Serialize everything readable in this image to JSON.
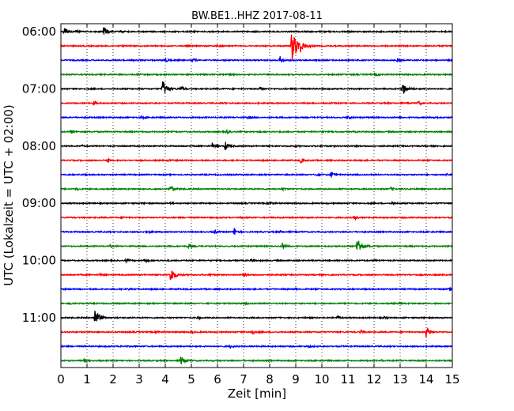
{
  "chart_data": {
    "type": "line",
    "title": "BW.BE1..HHZ 2017-08-11",
    "xlabel": "Zeit  [min]",
    "ylabel": "UTC (Lokalzeit = UTC + 02:00)",
    "xlim": [
      0,
      15
    ],
    "x_ticks": [
      0,
      1,
      2,
      3,
      4,
      5,
      6,
      7,
      8,
      9,
      10,
      11,
      12,
      13,
      14,
      15
    ],
    "y_tick_labels": [
      "06:00",
      "07:00",
      "08:00",
      "09:00",
      "10:00",
      "11:00"
    ],
    "row_minutes": 15,
    "grid": true,
    "colors": [
      "#000000",
      "#ff0000",
      "#0000ff",
      "#008000"
    ],
    "series": [
      {
        "start": "06:00",
        "events": [
          [
            0.15,
            0.5
          ],
          [
            1.65,
            0.7
          ],
          [
            0.6,
            0.15
          ],
          [
            2.3,
            0.1
          ]
        ]
      },
      {
        "start": "06:15",
        "events": [
          [
            8.85,
            2.2
          ],
          [
            9.2,
            0.4
          ],
          [
            6.0,
            0.1
          ]
        ]
      },
      {
        "start": "06:30",
        "events": [
          [
            4.0,
            0.3
          ],
          [
            5.05,
            0.25
          ],
          [
            8.4,
            0.5
          ],
          [
            12.9,
            0.25
          ]
        ]
      },
      {
        "start": "06:45",
        "events": [
          [
            12.05,
            0.25
          ],
          [
            3.0,
            0.1
          ],
          [
            6.5,
            0.1
          ]
        ]
      },
      {
        "start": "07:00",
        "events": [
          [
            3.9,
            1.2
          ],
          [
            13.1,
            0.9
          ],
          [
            7.65,
            0.3
          ],
          [
            4.6,
            0.3
          ]
        ]
      },
      {
        "start": "07:15",
        "events": [
          [
            1.25,
            0.25
          ],
          [
            13.7,
            0.25
          ],
          [
            6.2,
            0.1
          ]
        ]
      },
      {
        "start": "07:30",
        "events": [
          [
            3.1,
            0.2
          ],
          [
            7.2,
            0.2
          ],
          [
            11.0,
            0.25
          ],
          [
            14.3,
            0.15
          ]
        ]
      },
      {
        "start": "07:45",
        "events": [
          [
            0.4,
            0.25
          ],
          [
            6.35,
            0.25
          ],
          [
            10.0,
            0.1
          ]
        ]
      },
      {
        "start": "08:00",
        "events": [
          [
            6.3,
            0.6
          ],
          [
            5.8,
            0.4
          ],
          [
            0.8,
            0.1
          ],
          [
            9.0,
            0.1
          ]
        ]
      },
      {
        "start": "08:15",
        "events": [
          [
            1.8,
            0.3
          ],
          [
            9.2,
            0.3
          ],
          [
            4.1,
            0.1
          ]
        ]
      },
      {
        "start": "08:30",
        "events": [
          [
            10.35,
            0.45
          ],
          [
            14.8,
            0.2
          ],
          [
            9.8,
            0.2
          ]
        ]
      },
      {
        "start": "08:45",
        "events": [
          [
            4.2,
            0.55
          ],
          [
            12.65,
            0.25
          ],
          [
            8.5,
            0.15
          ],
          [
            0.6,
            0.1
          ]
        ]
      },
      {
        "start": "09:00",
        "events": [
          [
            8.0,
            0.3
          ],
          [
            12.7,
            0.2
          ],
          [
            4.2,
            0.1
          ]
        ]
      },
      {
        "start": "09:15",
        "events": [
          [
            11.25,
            0.3
          ],
          [
            2.4,
            0.1
          ],
          [
            6.9,
            0.1
          ]
        ]
      },
      {
        "start": "09:30",
        "events": [
          [
            6.65,
            0.55
          ],
          [
            5.9,
            0.3
          ],
          [
            3.35,
            0.2
          ],
          [
            8.4,
            0.15
          ]
        ]
      },
      {
        "start": "09:45",
        "events": [
          [
            11.35,
            1.3
          ],
          [
            8.5,
            0.5
          ],
          [
            4.9,
            0.3
          ],
          [
            1.9,
            0.2
          ]
        ]
      },
      {
        "start": "10:00",
        "events": [
          [
            3.2,
            0.25
          ],
          [
            7.3,
            0.2
          ],
          [
            2.5,
            0.15
          ],
          [
            12.0,
            0.1
          ]
        ]
      },
      {
        "start": "10:15",
        "events": [
          [
            4.2,
            1.1
          ],
          [
            7.0,
            0.25
          ],
          [
            1.5,
            0.15
          ],
          [
            5.7,
            0.15
          ]
        ]
      },
      {
        "start": "10:30",
        "events": [
          [
            14.9,
            0.2
          ],
          [
            2.6,
            0.1
          ],
          [
            9.0,
            0.1
          ]
        ]
      },
      {
        "start": "10:45",
        "events": [
          [
            0.3,
            0.2
          ],
          [
            7.1,
            0.1
          ],
          [
            13.0,
            0.1
          ]
        ]
      },
      {
        "start": "11:00",
        "events": [
          [
            1.3,
            1.2
          ],
          [
            10.6,
            0.3
          ],
          [
            5.3,
            0.15
          ],
          [
            12.4,
            0.1
          ]
        ]
      },
      {
        "start": "11:15",
        "events": [
          [
            14.0,
            0.8
          ],
          [
            7.3,
            0.5
          ],
          [
            11.5,
            0.25
          ],
          [
            3.7,
            0.2
          ],
          [
            5.0,
            0.2
          ]
        ]
      },
      {
        "start": "11:30",
        "events": [
          [
            6.5,
            0.2
          ],
          [
            9.5,
            0.15
          ],
          [
            2.3,
            0.1
          ]
        ]
      },
      {
        "start": "11:45",
        "events": [
          [
            4.6,
            0.6
          ],
          [
            0.9,
            0.2
          ],
          [
            12.3,
            0.1
          ]
        ]
      }
    ]
  }
}
